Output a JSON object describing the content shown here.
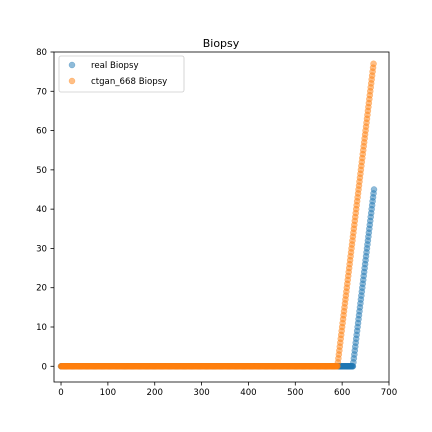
{
  "chart_data": {
    "type": "scatter",
    "title": "Biopsy",
    "xlabel": "",
    "ylabel": "",
    "xlim": [
      -15,
      700
    ],
    "ylim": [
      -4,
      80
    ],
    "xticks": [
      0,
      100,
      200,
      300,
      400,
      500,
      600,
      700
    ],
    "yticks": [
      0,
      10,
      20,
      30,
      40,
      50,
      60,
      70,
      80
    ],
    "grid": false,
    "legend_position": "top-left",
    "series": [
      {
        "name": "real Biopsy",
        "color": "#1f77b4",
        "segments": [
          {
            "x_start": 0,
            "x_end": 623,
            "y": 0
          },
          {
            "x_start": 624,
            "x_end": 668,
            "y_start": 1,
            "y_end": 45
          }
        ]
      },
      {
        "name": "ctgan_668 Biopsy",
        "color": "#ff7f0e",
        "segments": [
          {
            "x_start": 0,
            "x_end": 590,
            "y": 0
          },
          {
            "x_start": 591,
            "x_end": 667,
            "y_start": 1,
            "y_end": 77
          }
        ]
      }
    ]
  }
}
